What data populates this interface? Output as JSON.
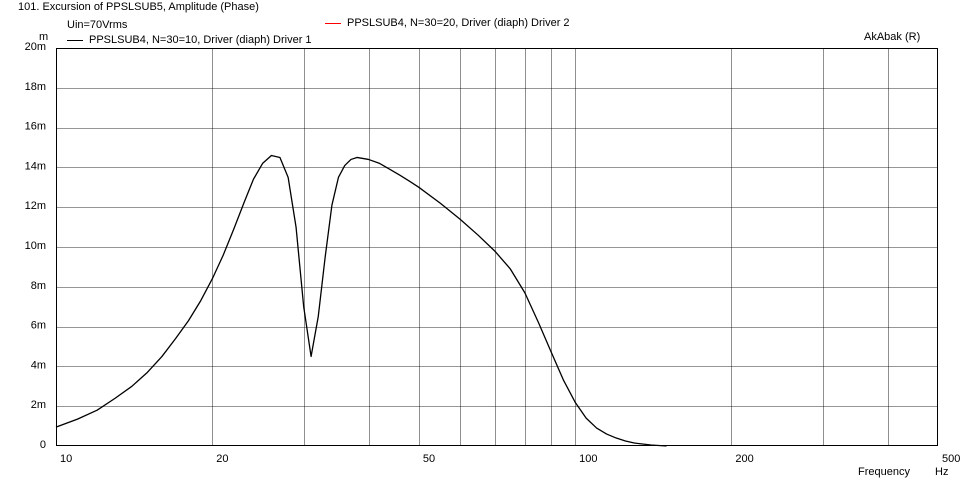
{
  "chart_data": {
    "type": "line",
    "title": "101. Excursion of PPSLSUB5, Amplitude (Phase)",
    "subtitle": "Uin=70Vrms",
    "software_label": "AkAbak (R)",
    "y_unit": "m",
    "xlabel": "Frequency",
    "x_unit": "Hz",
    "x_scale": "log",
    "xlim": [
      10,
      500
    ],
    "ylim": [
      0,
      0.02
    ],
    "grid": true,
    "x_ticks": [
      {
        "value": 10,
        "label": "10"
      },
      {
        "value": 20,
        "label": "20"
      },
      {
        "value": 50,
        "label": "50"
      },
      {
        "value": 100,
        "label": "100"
      },
      {
        "value": 200,
        "label": "200"
      },
      {
        "value": 500,
        "label": "500"
      }
    ],
    "x_minor_ticks": [
      30,
      40,
      60,
      70,
      80,
      90,
      300,
      400
    ],
    "y_ticks": [
      {
        "value": 0,
        "label": "0"
      },
      {
        "value": 0.002,
        "label": "2m"
      },
      {
        "value": 0.004,
        "label": "4m"
      },
      {
        "value": 0.006,
        "label": "6m"
      },
      {
        "value": 0.008,
        "label": "8m"
      },
      {
        "value": 0.01,
        "label": "10m"
      },
      {
        "value": 0.012,
        "label": "12m"
      },
      {
        "value": 0.014,
        "label": "14m"
      },
      {
        "value": 0.016,
        "label": "16m"
      },
      {
        "value": 0.018,
        "label": "18m"
      },
      {
        "value": 0.02,
        "label": "20m"
      }
    ],
    "legend_placement": "top",
    "series": [
      {
        "name": "PPSLSUB4, N=30=10, Driver (diaph) Driver 1",
        "color": "#000000",
        "x": [
          10,
          11,
          12,
          13,
          14,
          15,
          16,
          17,
          18,
          19,
          20,
          21,
          22,
          23,
          24,
          25,
          26,
          27,
          28,
          29,
          30,
          31,
          32,
          33,
          34,
          35,
          36,
          37,
          38,
          40,
          42,
          44,
          46,
          48,
          50,
          55,
          60,
          65,
          70,
          75,
          80,
          85,
          90,
          95,
          100,
          105,
          110,
          115,
          120,
          125,
          130,
          140,
          150
        ],
        "y": [
          0.00095,
          0.00135,
          0.0018,
          0.0024,
          0.003,
          0.0037,
          0.0045,
          0.0054,
          0.0063,
          0.0073,
          0.0084,
          0.0096,
          0.0109,
          0.0122,
          0.0134,
          0.0142,
          0.0146,
          0.0145,
          0.0135,
          0.011,
          0.007,
          0.0045,
          0.0065,
          0.0095,
          0.0121,
          0.0135,
          0.0141,
          0.0144,
          0.0145,
          0.0144,
          0.0142,
          0.0139,
          0.0136,
          0.0133,
          0.013,
          0.0122,
          0.0114,
          0.0106,
          0.0098,
          0.0089,
          0.0077,
          0.0062,
          0.0047,
          0.0033,
          0.0022,
          0.0014,
          0.0009,
          0.0006,
          0.0004,
          0.00025,
          0.00015,
          5e-05,
          0.0
        ]
      },
      {
        "name": "PPSLSUB4, N=30=20, Driver (diaph) Driver 2",
        "color": "#ff0000",
        "x": [],
        "y": []
      }
    ]
  }
}
